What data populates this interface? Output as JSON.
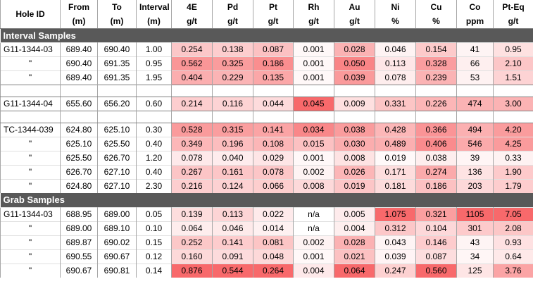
{
  "table": {
    "columns": [
      {
        "name": "Hole ID"
      },
      {
        "name": "From",
        "unit": "(m)"
      },
      {
        "name": "To",
        "unit": "(m)"
      },
      {
        "name": "Interval",
        "unit": "(m)"
      },
      {
        "name": "4E",
        "unit": "g/t"
      },
      {
        "name": "Pd",
        "unit": "g/t"
      },
      {
        "name": "Pt",
        "unit": "g/t"
      },
      {
        "name": "Rh",
        "unit": "g/t"
      },
      {
        "name": "Au",
        "unit": "g/t"
      },
      {
        "name": "Ni",
        "unit": "%"
      },
      {
        "name": "Cu",
        "unit": "%"
      },
      {
        "name": "Co",
        "unit": "ppm"
      },
      {
        "name": "Pt-Eq",
        "unit": "g/t"
      }
    ],
    "sections": [
      {
        "title": "Interval Samples",
        "groups": [
          [
            [
              "G11-1344-03",
              "689.40",
              "690.40",
              "1.00",
              "0.254",
              "0.138",
              "0.087",
              "0.001",
              "0.028",
              "0.046",
              "0.154",
              "41",
              "0.95"
            ],
            [
              "\"",
              "690.40",
              "691.35",
              "0.95",
              "0.562",
              "0.325",
              "0.186",
              "0.001",
              "0.050",
              "0.113",
              "0.328",
              "66",
              "2.10"
            ],
            [
              "\"",
              "689.40",
              "691.35",
              "1.95",
              "0.404",
              "0.229",
              "0.135",
              "0.001",
              "0.039",
              "0.078",
              "0.239",
              "53",
              "1.51"
            ]
          ],
          [
            [
              "G11-1344-04",
              "655.60",
              "656.20",
              "0.60",
              "0.214",
              "0.116",
              "0.044",
              "0.045",
              "0.009",
              "0.331",
              "0.226",
              "474",
              "3.00"
            ]
          ],
          [
            [
              "TC-1344-039",
              "624.80",
              "625.10",
              "0.30",
              "0.528",
              "0.315",
              "0.141",
              "0.034",
              "0.038",
              "0.428",
              "0.366",
              "494",
              "4.20"
            ],
            [
              "\"",
              "625.10",
              "625.50",
              "0.40",
              "0.349",
              "0.196",
              "0.108",
              "0.015",
              "0.030",
              "0.489",
              "0.406",
              "546",
              "4.25"
            ],
            [
              "\"",
              "625.50",
              "626.70",
              "1.20",
              "0.078",
              "0.040",
              "0.029",
              "0.001",
              "0.008",
              "0.019",
              "0.038",
              "39",
              "0.33"
            ],
            [
              "\"",
              "626.70",
              "627.10",
              "0.40",
              "0.267",
              "0.161",
              "0.078",
              "0.002",
              "0.026",
              "0.171",
              "0.274",
              "136",
              "1.90"
            ],
            [
              "\"",
              "624.80",
              "627.10",
              "2.30",
              "0.216",
              "0.124",
              "0.066",
              "0.008",
              "0.019",
              "0.181",
              "0.186",
              "203",
              "1.79"
            ]
          ]
        ]
      },
      {
        "title": "Grab Samples",
        "groups": [
          [
            [
              "G11-1344-03",
              "688.95",
              "689.00",
              "0.05",
              "0.139",
              "0.113",
              "0.022",
              "n/a",
              "0.005",
              "1.075",
              "0.321",
              "1105",
              "7.05"
            ],
            [
              "\"",
              "689.00",
              "689.10",
              "0.10",
              "0.064",
              "0.046",
              "0.014",
              "n/a",
              "0.004",
              "0.312",
              "0.104",
              "301",
              "2.08"
            ],
            [
              "\"",
              "689.87",
              "690.02",
              "0.15",
              "0.252",
              "0.141",
              "0.081",
              "0.002",
              "0.028",
              "0.043",
              "0.146",
              "43",
              "0.93"
            ],
            [
              "\"",
              "690.55",
              "690.67",
              "0.12",
              "0.160",
              "0.091",
              "0.048",
              "0.001",
              "0.021",
              "0.039",
              "0.087",
              "34",
              "0.64"
            ],
            [
              "\"",
              "690.67",
              "690.81",
              "0.14",
              "0.876",
              "0.544",
              "0.264",
              "0.004",
              "0.064",
              "0.247",
              "0.560",
              "125",
              "3.76"
            ]
          ]
        ]
      }
    ]
  }
}
